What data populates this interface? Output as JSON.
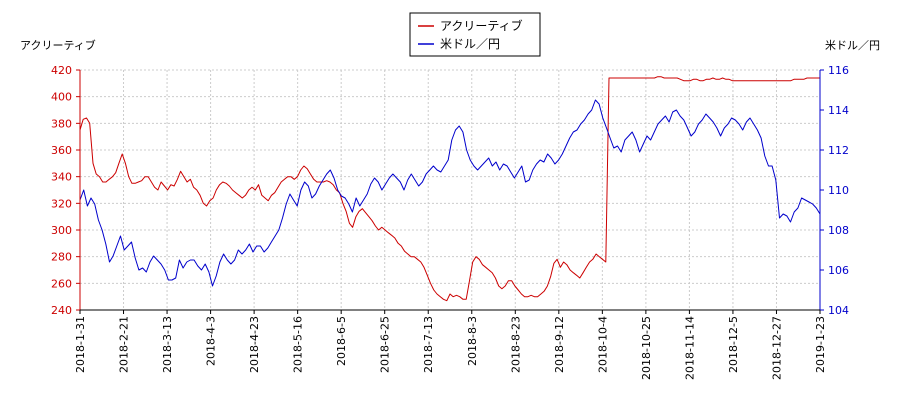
{
  "chart_data": {
    "type": "line",
    "left_axis_title": "アクリーティブ",
    "right_axis_title": "米ドル／円",
    "x_labels": [
      "2018-1-31",
      "2018-2-21",
      "2018-3-13",
      "2018-4-3",
      "2018-4-23",
      "2018-5-16",
      "2018-6-5",
      "2018-6-25",
      "2018-7-13",
      "2018-8-3",
      "2018-8-23",
      "2018-9-12",
      "2018-10-4",
      "2018-10-25",
      "2018-11-14",
      "2018-12-5",
      "2018-12-27",
      "2019-1-23"
    ],
    "y_left": {
      "min": 240,
      "max": 420,
      "ticks": [
        "240",
        "260",
        "280",
        "300",
        "320",
        "340",
        "360",
        "380",
        "400",
        "420"
      ],
      "color": "#cc0000"
    },
    "y_right": {
      "min": 104,
      "max": 116,
      "ticks": [
        "104",
        "106",
        "108",
        "110",
        "112",
        "114",
        "116"
      ],
      "color": "#0000cc"
    },
    "legend": [
      {
        "name": "アクリーティブ",
        "color": "#cc0000"
      },
      {
        "name": "米ドル／円",
        "color": "#0000cc"
      }
    ],
    "series": [
      {
        "name": "アクリーティブ",
        "axis": "left",
        "color": "#cc0000",
        "values": [
          375,
          383,
          384,
          380,
          350,
          342,
          340,
          336,
          336,
          338,
          340,
          343,
          350,
          357,
          350,
          340,
          335,
          335,
          336,
          337,
          340,
          340,
          336,
          332,
          330,
          336,
          333,
          330,
          334,
          333,
          338,
          344,
          340,
          336,
          338,
          332,
          330,
          326,
          320,
          318,
          322,
          324,
          330,
          334,
          336,
          335,
          333,
          330,
          328,
          326,
          324,
          326,
          330,
          332,
          330,
          334,
          326,
          324,
          322,
          326,
          328,
          332,
          336,
          338,
          340,
          340,
          338,
          340,
          345,
          348,
          346,
          342,
          338,
          336,
          336,
          336,
          337,
          336,
          334,
          330,
          328,
          320,
          314,
          305,
          302,
          310,
          314,
          316,
          313,
          310,
          307,
          303,
          300,
          302,
          300,
          298,
          296,
          294,
          290,
          288,
          284,
          282,
          280,
          280,
          278,
          276,
          272,
          266,
          260,
          255,
          252,
          250,
          248,
          247,
          252,
          250,
          251,
          250,
          248,
          248,
          262,
          276,
          280,
          278,
          274,
          272,
          270,
          268,
          264,
          258,
          256,
          258,
          262,
          262,
          258,
          255,
          252,
          250,
          250,
          251,
          250,
          250,
          252,
          254,
          258,
          265,
          275,
          278,
          272,
          276,
          274,
          270,
          268,
          266,
          264,
          268,
          272,
          276,
          278,
          282,
          280,
          278,
          276,
          414,
          414,
          414,
          414,
          414,
          414,
          414,
          414,
          414,
          414,
          414,
          414,
          414,
          414,
          414,
          415,
          415,
          414,
          414,
          414,
          414,
          414,
          413,
          412,
          412,
          412,
          413,
          413,
          412,
          412,
          413,
          413,
          414,
          413,
          413,
          414,
          413,
          413,
          412,
          412,
          412,
          412,
          412,
          412,
          412,
          412,
          412,
          412,
          412,
          412,
          412,
          412,
          412,
          412,
          412,
          412,
          412,
          413,
          413,
          413,
          413,
          414,
          414,
          414,
          414,
          414
        ]
      },
      {
        "name": "米ドル／円",
        "axis": "right",
        "color": "#0000cc",
        "values": [
          109.5,
          110.0,
          109.2,
          109.6,
          109.3,
          108.5,
          108.0,
          107.3,
          106.4,
          106.7,
          107.2,
          107.7,
          107.0,
          107.2,
          107.4,
          106.6,
          106.0,
          106.1,
          105.9,
          106.4,
          106.7,
          106.5,
          106.3,
          106.0,
          105.5,
          105.5,
          105.6,
          106.5,
          106.1,
          106.4,
          106.5,
          106.5,
          106.2,
          106.0,
          106.3,
          105.9,
          105.2,
          105.7,
          106.4,
          106.8,
          106.5,
          106.3,
          106.5,
          107.0,
          106.8,
          107.0,
          107.3,
          106.9,
          107.2,
          107.2,
          106.9,
          107.1,
          107.4,
          107.7,
          108.0,
          108.6,
          109.3,
          109.8,
          109.5,
          109.2,
          110.0,
          110.4,
          110.2,
          109.6,
          109.8,
          110.2,
          110.5,
          110.8,
          111.0,
          110.6,
          110.0,
          109.7,
          109.6,
          109.3,
          108.9,
          109.6,
          109.2,
          109.5,
          109.8,
          110.3,
          110.6,
          110.4,
          110.0,
          110.3,
          110.6,
          110.8,
          110.6,
          110.4,
          110.0,
          110.5,
          110.8,
          110.5,
          110.2,
          110.4,
          110.8,
          111.0,
          111.2,
          111.0,
          110.9,
          111.2,
          111.5,
          112.5,
          113.0,
          113.2,
          112.9,
          112.0,
          111.5,
          111.2,
          111.0,
          111.2,
          111.4,
          111.6,
          111.2,
          111.4,
          111.0,
          111.3,
          111.2,
          110.9,
          110.6,
          110.9,
          111.2,
          110.4,
          110.5,
          111.0,
          111.3,
          111.5,
          111.4,
          111.8,
          111.6,
          111.3,
          111.5,
          111.8,
          112.2,
          112.6,
          112.9,
          113.0,
          113.3,
          113.5,
          113.8,
          114.0,
          114.5,
          114.3,
          113.6,
          113.1,
          112.6,
          112.1,
          112.2,
          111.9,
          112.5,
          112.7,
          112.9,
          112.5,
          111.9,
          112.3,
          112.7,
          112.5,
          112.9,
          113.3,
          113.5,
          113.7,
          113.4,
          113.9,
          114.0,
          113.7,
          113.5,
          113.1,
          112.7,
          112.9,
          113.3,
          113.5,
          113.8,
          113.6,
          113.4,
          113.1,
          112.7,
          113.1,
          113.3,
          113.6,
          113.5,
          113.3,
          113.0,
          113.4,
          113.6,
          113.3,
          113.0,
          112.6,
          111.7,
          111.2,
          111.2,
          110.5,
          108.6,
          108.8,
          108.7,
          108.4,
          108.9,
          109.1,
          109.6,
          109.5,
          109.4,
          109.3,
          109.1,
          108.8
        ]
      }
    ]
  }
}
